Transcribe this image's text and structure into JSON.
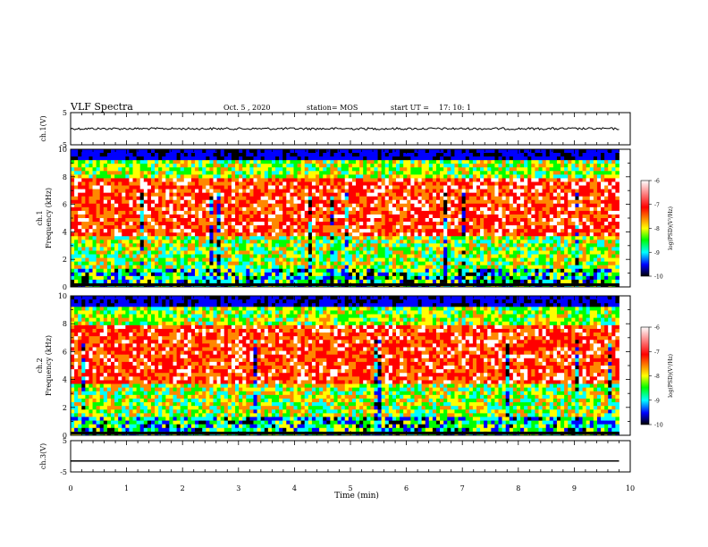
{
  "header": {
    "title": "VLF Spectra",
    "date": "Oct. 5 , 2020",
    "station": "station= MOS",
    "start_label": "start  UT  =",
    "start_time": "17: 10: 1"
  },
  "chart_data": {
    "type": "heatmap",
    "x_axis": {
      "label": "Time  (min)",
      "range": [
        0,
        10
      ],
      "ticks": [
        "0",
        "1",
        "2",
        "3",
        "4",
        "5",
        "6",
        "7",
        "8",
        "9",
        "10"
      ]
    },
    "panels": [
      {
        "name": "ch.1(V)",
        "kind": "waveform",
        "ylim": [
          -5,
          5
        ],
        "yticks": [
          "5",
          "-5"
        ],
        "level": 0,
        "end_min": 9.8
      },
      {
        "name": "ch.1",
        "kind": "spectrogram",
        "ylabel": "Frequency  (kHz)",
        "ylim": [
          0,
          10
        ],
        "yticks": [
          "0",
          "2",
          "4",
          "6",
          "8",
          "10"
        ],
        "end_min": 9.8
      },
      {
        "name": "ch.2",
        "kind": "spectrogram",
        "ylabel": "Frequency  (kHz)",
        "ylim": [
          0,
          10
        ],
        "yticks": [
          "0",
          "2",
          "4",
          "6",
          "8",
          "10"
        ],
        "end_min": 9.8
      },
      {
        "name": "ch.3(V)",
        "kind": "waveform",
        "ylim": [
          -5,
          5
        ],
        "yticks": [
          "5",
          "-5"
        ],
        "level": -1.5,
        "end_min": 9.8
      }
    ],
    "colorbar": {
      "label": "log(PSD)(V²/Hz)",
      "range": [
        -10,
        -6
      ],
      "ticks": [
        "-6",
        "-7",
        "-8",
        "-9",
        "-10"
      ],
      "colors": [
        "#ffffff",
        "#ff0000",
        "#ffff00",
        "#00ff00",
        "#00ffff",
        "#0000ff",
        "#000000"
      ]
    }
  }
}
